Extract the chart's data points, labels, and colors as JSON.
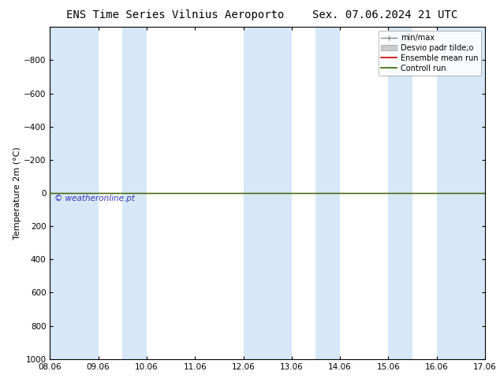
{
  "title_left": "ENS Time Series Vilnius Aeroporto",
  "title_right": "Sex. 07.06.2024 21 UTC",
  "ylabel": "Temperature 2m (°C)",
  "ylim_bottom": 1000,
  "ylim_top": -1000,
  "yticks": [
    -800,
    -600,
    -400,
    -200,
    0,
    200,
    400,
    600,
    800,
    1000
  ],
  "x_numeric_start": 0,
  "x_numeric_end": 9,
  "xtick_positions": [
    0,
    1,
    2,
    3,
    4,
    5,
    6,
    7,
    8,
    9
  ],
  "xtick_labels": [
    "08.06",
    "09.06",
    "10.06",
    "11.06",
    "12.06",
    "13.06",
    "14.06",
    "15.06",
    "16.06",
    "17.06"
  ],
  "shaded_bands": [
    [
      0,
      1
    ],
    [
      1.5,
      2
    ],
    [
      4,
      5
    ],
    [
      5.5,
      6
    ],
    [
      7,
      7.5
    ],
    [
      8,
      9
    ]
  ],
  "band_color": "#d6e8f7",
  "control_run_y": 0,
  "ensemble_mean_y": 0,
  "control_run_color": "#336600",
  "ensemble_mean_color": "#cc0000",
  "background_color": "#ffffff",
  "plot_bg_color": "#ffffff",
  "tick_color": "#000000",
  "watermark": "© weatheronline.pt",
  "watermark_color": "#3333bb",
  "legend_minmax_color": "#888888",
  "legend_desvio_color": "#cccccc",
  "legend_items": [
    {
      "label": "min/max",
      "color": "#888888"
    },
    {
      "label": "Desvio padr tilde;o",
      "color": "#cccccc"
    },
    {
      "label": "Ensemble mean run",
      "color": "#cc0000"
    },
    {
      "label": "Controll run",
      "color": "#336600"
    }
  ],
  "title_fontsize": 10,
  "tick_fontsize": 7.5,
  "ylabel_fontsize": 8,
  "legend_fontsize": 7
}
